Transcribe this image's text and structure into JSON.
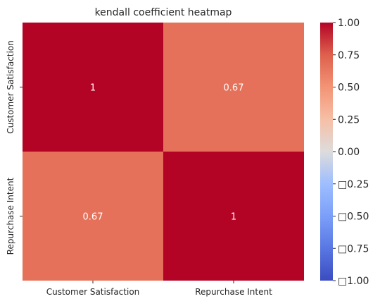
{
  "chart_data": {
    "type": "heatmap",
    "title": "kendall coefficient heatmap",
    "x_categories": [
      "Customer Satisfaction",
      "Repurchase Intent"
    ],
    "y_categories": [
      "Customer Satisfaction",
      "Repurchase Intent"
    ],
    "values": [
      [
        1,
        0.67
      ],
      [
        0.67,
        1
      ]
    ],
    "cell_labels": [
      [
        "1",
        "0.67"
      ],
      [
        "0.67",
        "1"
      ]
    ],
    "colormap": "coolwarm",
    "colorbar": {
      "range": [
        -1,
        1
      ],
      "ticks": [
        1,
        0.75,
        0.5,
        0.25,
        0,
        -0.25,
        -0.5,
        -0.75,
        -1
      ],
      "tick_labels": [
        "1.00",
        "0.75",
        "0.50",
        "0.25",
        "0.00",
        "□0.25",
        "□0.50",
        "□0.75",
        "□1.00"
      ]
    },
    "colors": {
      "high": "#b40426",
      "mid": "#dddcdc",
      "low": "#3b4cc0",
      "value_067": "#e8735b"
    }
  }
}
